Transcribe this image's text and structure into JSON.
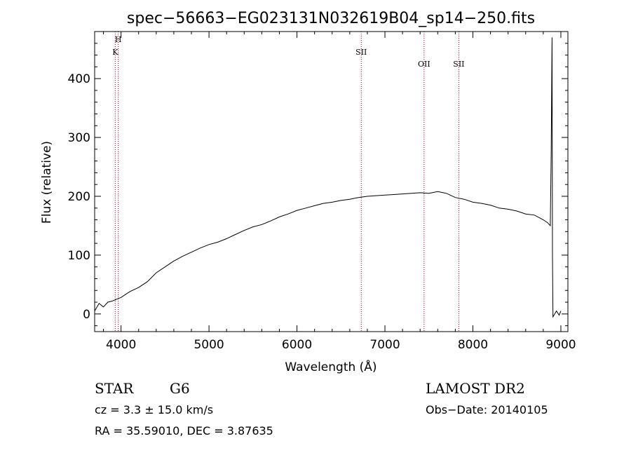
{
  "chart_data": {
    "type": "line",
    "title": "spec−56663−EG023131N032619B04_sp14−250.fits",
    "xlabel": "Wavelength (Å)",
    "ylabel": "Flux (relative)",
    "xlim": [
      3700,
      9080
    ],
    "ylim": [
      -30,
      480
    ],
    "x_ticks": [
      4000,
      5000,
      6000,
      7000,
      8000,
      9000
    ],
    "y_ticks": [
      0,
      100,
      200,
      300,
      400
    ],
    "x_tick_labels": [
      "4000",
      "5000",
      "6000",
      "7000",
      "8000",
      "9000"
    ],
    "y_tick_labels": [
      "0",
      "100",
      "200",
      "300",
      "400"
    ],
    "grid": false,
    "series": [
      {
        "x": [
          3700,
          3750,
          3800,
          3850,
          3900,
          3950,
          4000,
          4100,
          4200,
          4300,
          4400,
          4500,
          4600,
          4700,
          4800,
          4900,
          5000,
          5100,
          5200,
          5300,
          5400,
          5500,
          5600,
          5700,
          5800,
          5900,
          6000,
          6100,
          6200,
          6300,
          6400,
          6500,
          6600,
          6700,
          6800,
          6900,
          7000,
          7100,
          7200,
          7300,
          7400,
          7500,
          7600,
          7700,
          7800,
          7900,
          8000,
          8100,
          8200,
          8300,
          8400,
          8500,
          8600,
          8700,
          8800,
          8850,
          8880,
          8890,
          8900,
          8905,
          8910,
          8930,
          8950,
          8980,
          9000
        ],
        "y": [
          5,
          18,
          12,
          20,
          22,
          25,
          28,
          38,
          45,
          55,
          70,
          80,
          90,
          98,
          105,
          112,
          118,
          122,
          128,
          135,
          142,
          148,
          152,
          158,
          165,
          170,
          176,
          180,
          184,
          188,
          190,
          193,
          195,
          198,
          200,
          201,
          202,
          203,
          204,
          205,
          206,
          205,
          208,
          205,
          198,
          195,
          190,
          188,
          185,
          180,
          178,
          175,
          170,
          168,
          160,
          155,
          150,
          280,
          470,
          100,
          -5,
          0,
          5,
          -2,
          5
        ]
      }
    ],
    "lines": [
      {
        "label": "H",
        "x": 3968
      },
      {
        "label": "K",
        "x": 3934
      },
      {
        "label": "SII",
        "x": 6731
      },
      {
        "label": "OII",
        "x": 7445
      },
      {
        "label": "SII",
        "x": 7840
      }
    ],
    "line_color": "#000000",
    "marker_color": "#aa0000"
  },
  "info": {
    "object_class": "STAR",
    "subclass": "G6",
    "survey": "LAMOST DR2",
    "cz": "cz = 3.3 ± 15.0 km/s",
    "obs_date": "Obs−Date: 20140105",
    "coords": "RA =  35.59010, DEC =   3.87635"
  }
}
